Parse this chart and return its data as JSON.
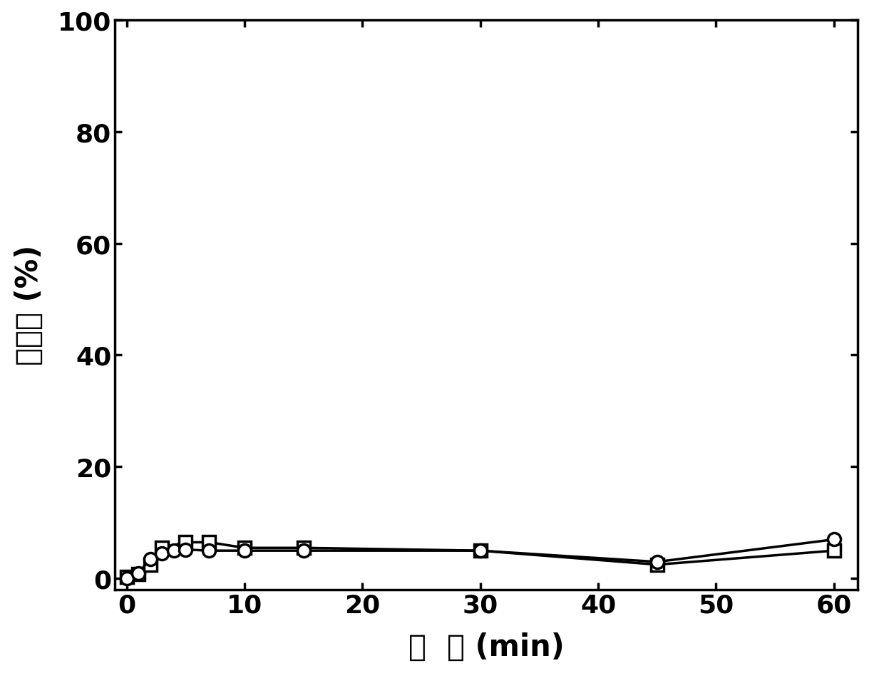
{
  "series1_x": [
    0,
    1,
    2,
    3,
    4,
    5,
    7,
    10,
    15,
    30,
    45,
    60
  ],
  "series1_y": [
    0.0,
    1.0,
    3.5,
    4.5,
    5.0,
    5.2,
    5.0,
    5.0,
    5.0,
    5.0,
    3.0,
    7.0
  ],
  "series2_x": [
    0,
    1,
    2,
    3,
    5,
    7,
    10,
    15,
    30,
    45,
    60
  ],
  "series2_y": [
    0.3,
    0.8,
    2.5,
    5.5,
    6.5,
    6.5,
    5.5,
    5.5,
    5.0,
    2.5,
    5.0
  ],
  "xlabel": "时  间 (min)",
  "ylabel": "去除率 (%)",
  "xlim": [
    -1,
    62
  ],
  "ylim": [
    -2,
    100
  ],
  "xticks": [
    0,
    10,
    20,
    30,
    40,
    50,
    60
  ],
  "yticks": [
    0,
    20,
    40,
    60,
    80,
    100
  ],
  "line_color": "#000000",
  "background_color": "#ffffff",
  "label_fontsize": 30,
  "tick_fontsize": 26,
  "line_width": 2.5,
  "marker_size": 13,
  "marker_edge_width": 2.5
}
